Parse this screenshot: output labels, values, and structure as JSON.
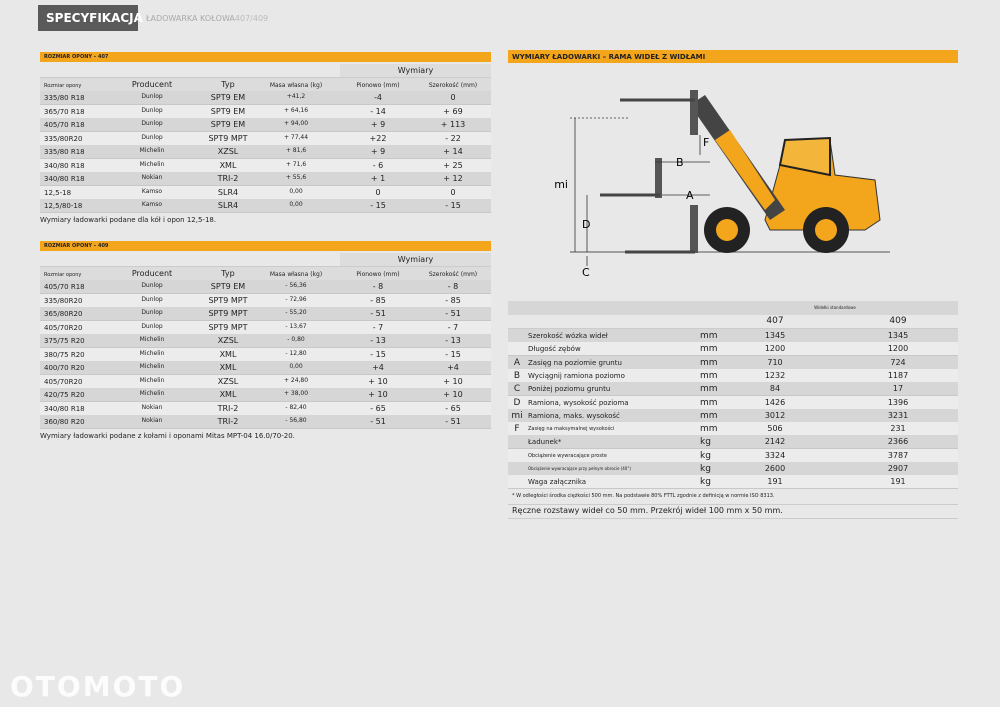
{
  "header": {
    "section": "SPECYFIKACJA",
    "title": "ŁADOWARKA KOŁOWA",
    "model": "407/409"
  },
  "tables": [
    {
      "title": "ROZMIAR OPONY – 407",
      "group": "Wymiary",
      "columns": [
        "Rozmiar opony",
        "Producent",
        "Typ",
        "Masa własna (kg)",
        "Pionowo (mm)",
        "Szerokość (mm)"
      ],
      "rows": [
        [
          "335/80 R18",
          "Dunlop",
          "SPT9 EM",
          "+41,2",
          "-4",
          "0"
        ],
        [
          "365/70 R18",
          "Dunlop",
          "SPT9 EM",
          "+ 64,16",
          "- 14",
          "+ 69"
        ],
        [
          "405/70 R18",
          "Dunlop",
          "SPT9 EM",
          "+ 94,00",
          "+ 9",
          "+ 113"
        ],
        [
          "335/80R20",
          "Dunlop",
          "SPT9 MPT",
          "+ 77,44",
          "+22",
          "- 22"
        ],
        [
          "335/80 R18",
          "Michelin",
          "XZSL",
          "+ 81,6",
          "+ 9",
          "+ 14"
        ],
        [
          "340/80 R18",
          "Michelin",
          "XML",
          "+ 71,6",
          "- 6",
          "+ 25"
        ],
        [
          "340/80 R18",
          "Nokian",
          "TRI-2",
          "+ 55,6",
          "+ 1",
          "+ 12"
        ],
        [
          "12,5-18",
          "Kamso",
          "SLR4",
          "0,00",
          "0",
          "0"
        ],
        [
          "12,5/80-18",
          "Kamso",
          "SLR4",
          "0,00",
          "- 15",
          "- 15"
        ]
      ],
      "note": "Wymiary ładowarki podane dla kół i opon 12,5-18."
    },
    {
      "title": "ROZMIAR OPONY – 409",
      "group": "Wymiary",
      "columns": [
        "Rozmiar opony",
        "Producent",
        "Typ",
        "Masa własna (kg)",
        "Pionowo (mm)",
        "Szerokość (mm)"
      ],
      "rows": [
        [
          "405/70 R18",
          "Dunlop",
          "SPT9 EM",
          "- 56,36",
          "- 8",
          "- 8"
        ],
        [
          "335/80R20",
          "Dunlop",
          "SPT9 MPT",
          "- 72,96",
          "- 85",
          "- 85"
        ],
        [
          "365/80R20",
          "Dunlop",
          "SPT9 MPT",
          "- 55,20",
          "- 51",
          "- 51"
        ],
        [
          "405/70R20",
          "Dunlop",
          "SPT9 MPT",
          "- 13,67",
          "- 7",
          "- 7"
        ],
        [
          "375/75 R20",
          "Michelin",
          "XZSL",
          "- 0,80",
          "- 13",
          "- 13"
        ],
        [
          "380/75 R20",
          "Michelin",
          "XML",
          "- 12,80",
          "- 15",
          "- 15"
        ],
        [
          "400/70 R20",
          "Michelin",
          "XML",
          "0,00",
          "+4",
          "+4"
        ],
        [
          "405/70R20",
          "Michelin",
          "XZSL",
          "+ 24,80",
          "+ 10",
          "+ 10"
        ],
        [
          "420/75 R20",
          "Michelin",
          "XML",
          "+ 38,00",
          "+ 10",
          "+ 10"
        ],
        [
          "340/80 R18",
          "Nokian",
          "TRI-2",
          "- 82,40",
          "- 65",
          "- 65"
        ],
        [
          "360/80 R20",
          "Nokian",
          "TRI-2",
          "- 56,80",
          "- 51",
          "- 51"
        ]
      ],
      "note": "Wymiary ładowarki podane z kołami i oponami Mitas MPT-04 16.0/70-20."
    }
  ],
  "dimensions": {
    "title": "WYMIARY ŁADOWARKI – RAMA WIDEŁ Z WIDŁAMI",
    "diagram_labels": {
      "F": "F",
      "B": "B",
      "mi": "mi",
      "A": "A",
      "D": "D",
      "C": "C"
    },
    "group": "Widełki standardowe",
    "models": [
      "407",
      "409"
    ],
    "rows": [
      {
        "label": "Szerokość wózka wideł",
        "unit": "mm",
        "values": [
          "1345",
          "1345"
        ]
      },
      {
        "label": "Długość zębów",
        "unit": "mm",
        "values": [
          "1200",
          "1200"
        ]
      },
      {
        "letter": "A",
        "label": "Zasięg na poziomie gruntu",
        "unit": "mm",
        "values": [
          "710",
          "724"
        ]
      },
      {
        "letter": "B",
        "label": "Wyciągnij ramiona poziomo",
        "unit": "mm",
        "values": [
          "1232",
          "1187"
        ]
      },
      {
        "letter": "C",
        "label": "Poniżej poziomu gruntu",
        "unit": "mm",
        "values": [
          "84",
          "17"
        ]
      },
      {
        "letter": "D",
        "label": "Ramiona, wysokość pozioma",
        "unit": "mm",
        "values": [
          "1426",
          "1396"
        ]
      },
      {
        "letter": "mi",
        "label": "Ramiona, maks. wysokość",
        "unit": "mm",
        "values": [
          "3012",
          "3231"
        ]
      },
      {
        "letter": "F",
        "label": "Zasięg na maksymalnej wysokości",
        "unit": "mm",
        "values": [
          "506",
          "231"
        ]
      },
      {
        "label": "Ładunek*",
        "unit": "kg",
        "values": [
          "2142",
          "2366"
        ]
      },
      {
        "label": "Obciążenie wywracające proste",
        "unit": "kg",
        "values": [
          "3324",
          "3787"
        ]
      },
      {
        "label": "Obciążenie wywracające przy pełnym obrocie (40°)",
        "unit": "kg",
        "values": [
          "2600",
          "2907"
        ]
      },
      {
        "label": "Waga załącznika",
        "unit": "kg",
        "values": [
          "191",
          "191"
        ]
      }
    ],
    "footnote": "* W odległości środka ciężkości 500 mm. Na podstawie 80% FTTL zgodnie z definicją w normie ISO 8313.",
    "note": "Ręczne rozstawy wideł co 50 mm. Przekrój wideł 100 mm x 50 mm."
  },
  "watermark": "OTOMOTO"
}
